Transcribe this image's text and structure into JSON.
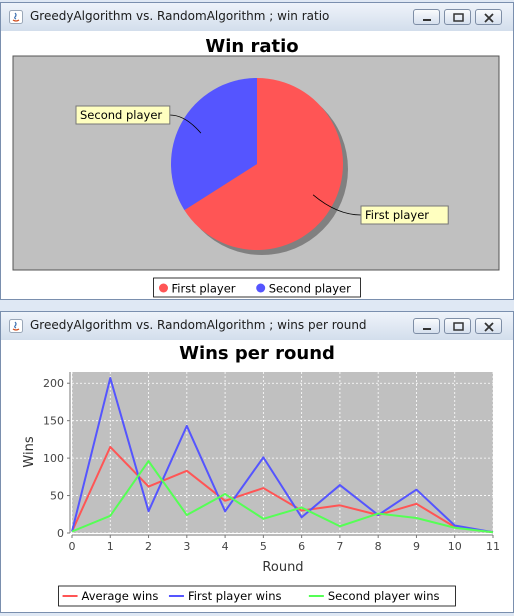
{
  "windows": [
    {
      "title": "GreedyAlgorithm vs. RandomAlgorithm ; win ratio",
      "chart_data": {
        "type": "pie",
        "title": "Win ratio",
        "slices": [
          {
            "label": "First player",
            "value": 66,
            "color": "#ff5555"
          },
          {
            "label": "Second player",
            "value": 34,
            "color": "#5555ff"
          }
        ],
        "legend": [
          "First player",
          "Second player"
        ],
        "legend_position": "bottom"
      }
    },
    {
      "title": "GreedyAlgorithm vs. RandomAlgorithm ; wins per round",
      "chart_data": {
        "type": "line",
        "title": "Wins per round",
        "xlabel": "Round",
        "ylabel": "Wins",
        "xlim": [
          0,
          11
        ],
        "ylim": [
          0,
          215
        ],
        "x": [
          0,
          1,
          2,
          3,
          4,
          5,
          6,
          7,
          8,
          9,
          10,
          11
        ],
        "x_ticks": [
          "0",
          "1",
          "2",
          "3",
          "4",
          "5",
          "6",
          "7",
          "8",
          "9",
          "10",
          "11"
        ],
        "y_ticks": [
          "0",
          "50",
          "100",
          "150",
          "200"
        ],
        "grid": true,
        "series": [
          {
            "name": "Average wins",
            "color": "#ff5555",
            "values": [
              2,
              115,
              62,
              83,
              43,
              60,
              30,
              37,
              24,
              39,
              8,
              1
            ]
          },
          {
            "name": "First player wins",
            "color": "#5555ff",
            "values": [
              2,
              207,
              29,
              143,
              29,
              101,
              21,
              64,
              24,
              58,
              10,
              1
            ]
          },
          {
            "name": "Second player wins",
            "color": "#55ff55",
            "values": [
              2,
              23,
              96,
              24,
              52,
              19,
              34,
              9,
              26,
              20,
              7,
              1
            ]
          }
        ],
        "legend_position": "bottom"
      }
    }
  ]
}
